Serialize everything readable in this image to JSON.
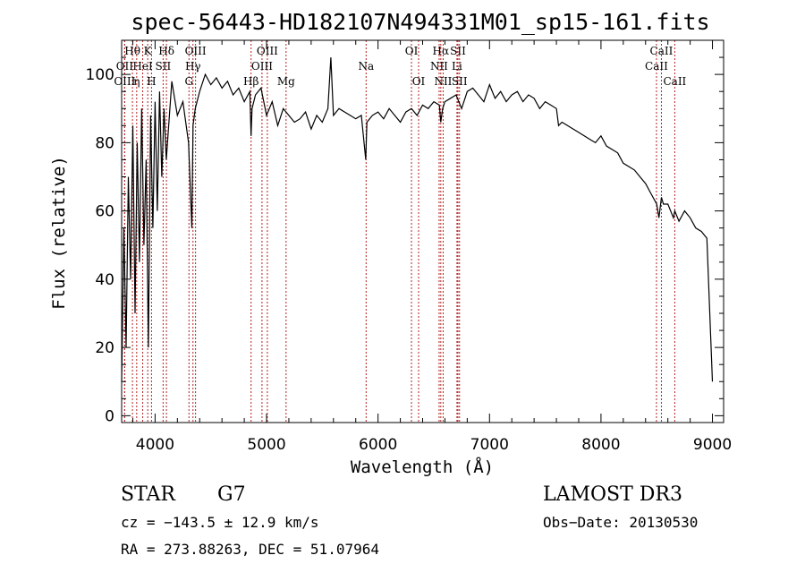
{
  "chart_data": {
    "type": "line",
    "title": "spec-56443-HD182107N494331M01_sp15-161.fits",
    "xlabel": "Wavelength (Å)",
    "ylabel": "Flux (relative)",
    "xlim": [
      3700,
      9100
    ],
    "ylim": [
      -2,
      110
    ],
    "xticks": [
      4000,
      5000,
      6000,
      7000,
      8000,
      9000
    ],
    "yticks": [
      0,
      20,
      40,
      60,
      80,
      100
    ],
    "series": [
      {
        "name": "flux",
        "x": [
          3700,
          3720,
          3740,
          3760,
          3780,
          3800,
          3820,
          3840,
          3860,
          3880,
          3900,
          3920,
          3940,
          3960,
          3980,
          4000,
          4020,
          4040,
          4060,
          4080,
          4100,
          4150,
          4200,
          4250,
          4300,
          4330,
          4340,
          4360,
          4400,
          4450,
          4500,
          4550,
          4600,
          4650,
          4700,
          4750,
          4800,
          4850,
          4861,
          4870,
          4900,
          4950,
          5000,
          5050,
          5100,
          5150,
          5200,
          5250,
          5300,
          5350,
          5400,
          5450,
          5500,
          5550,
          5577,
          5600,
          5650,
          5700,
          5750,
          5800,
          5850,
          5890,
          5900,
          5950,
          6000,
          6050,
          6100,
          6150,
          6200,
          6250,
          6300,
          6350,
          6400,
          6450,
          6500,
          6550,
          6563,
          6580,
          6600,
          6650,
          6700,
          6750,
          6800,
          6850,
          6900,
          6950,
          7000,
          7050,
          7100,
          7150,
          7200,
          7250,
          7300,
          7350,
          7400,
          7450,
          7500,
          7550,
          7600,
          7620,
          7650,
          7700,
          7750,
          7800,
          7850,
          7900,
          7950,
          8000,
          8050,
          8100,
          8150,
          8200,
          8250,
          8300,
          8350,
          8400,
          8450,
          8500,
          8520,
          8542,
          8560,
          8600,
          8650,
          8662,
          8700,
          8750,
          8800,
          8850,
          8900,
          8950,
          9000
        ],
        "y": [
          10,
          55,
          20,
          70,
          40,
          85,
          30,
          80,
          45,
          90,
          50,
          75,
          20,
          88,
          55,
          92,
          60,
          95,
          70,
          90,
          75,
          98,
          88,
          92,
          80,
          55,
          85,
          90,
          95,
          100,
          97,
          99,
          96,
          98,
          94,
          96,
          92,
          95,
          82,
          90,
          94,
          96,
          88,
          92,
          85,
          90,
          88,
          86,
          87,
          89,
          84,
          88,
          86,
          90,
          105,
          88,
          90,
          89,
          88,
          87,
          88,
          75,
          86,
          88,
          89,
          87,
          90,
          88,
          86,
          89,
          90,
          88,
          91,
          90,
          92,
          91,
          86,
          90,
          92,
          93,
          94,
          90,
          95,
          96,
          94,
          92,
          97,
          93,
          95,
          92,
          94,
          95,
          92,
          94,
          93,
          90,
          92,
          91,
          90,
          85,
          86,
          85,
          84,
          83,
          82,
          81,
          80,
          82,
          79,
          78,
          77,
          74,
          73,
          72,
          70,
          68,
          65,
          62,
          58,
          64,
          62,
          62,
          58,
          60,
          57,
          60,
          58,
          55,
          54,
          52,
          10
        ]
      }
    ],
    "lines": [
      {
        "label": "Hθ",
        "x": 3797,
        "row": 1
      },
      {
        "label": "OII",
        "x": 3727,
        "row": 2
      },
      {
        "label": "OIII",
        "x": 3727,
        "row": 3
      },
      {
        "label": "K",
        "x": 3934,
        "row": 1
      },
      {
        "label": "HeI",
        "x": 3889,
        "row": 2
      },
      {
        "label": "η",
        "x": 3835,
        "row": 3
      },
      {
        "label": "H",
        "x": 3968,
        "row": 3
      },
      {
        "label": "Hδ",
        "x": 4102,
        "row": 1
      },
      {
        "label": "SII",
        "x": 4072,
        "row": 2
      },
      {
        "label": "OIII",
        "x": 4363,
        "row": 1
      },
      {
        "label": "Hγ",
        "x": 4340,
        "row": 2
      },
      {
        "label": "G",
        "x": 4304,
        "row": 3
      },
      {
        "label": "OIII",
        "x": 5007,
        "row": 1
      },
      {
        "label": "OIII",
        "x": 4959,
        "row": 2
      },
      {
        "label": "Hβ",
        "x": 4861,
        "row": 3
      },
      {
        "label": "Mg",
        "x": 5175,
        "row": 3
      },
      {
        "label": "Na",
        "x": 5893,
        "row": 2
      },
      {
        "label": "OI",
        "x": 6300,
        "row": 1
      },
      {
        "label": "OI",
        "x": 6364,
        "row": 3
      },
      {
        "label": "Hα",
        "x": 6563,
        "row": 1
      },
      {
        "label": "SII",
        "x": 6717,
        "row": 1
      },
      {
        "label": "NII",
        "x": 6548,
        "row": 2
      },
      {
        "label": "Li",
        "x": 6708,
        "row": 2
      },
      {
        "label": "NII",
        "x": 6584,
        "row": 3
      },
      {
        "label": "SII",
        "x": 6731,
        "row": 3
      },
      {
        "label": "CaII",
        "x": 8542,
        "row": 1
      },
      {
        "label": "CaII",
        "x": 8498,
        "row": 2
      },
      {
        "label": "CaII",
        "x": 8662,
        "row": 3
      }
    ]
  },
  "info": {
    "class": "STAR",
    "subclass": "G7",
    "survey": "LAMOST DR3",
    "cz": "cz = −143.5 ± 12.9 km/s",
    "obs_date": "Obs−Date: 20130530",
    "radec": "RA = 273.88263, DEC =  51.07964"
  },
  "colors": {
    "spectrum": "#000000",
    "marker_line": "#b22222"
  }
}
